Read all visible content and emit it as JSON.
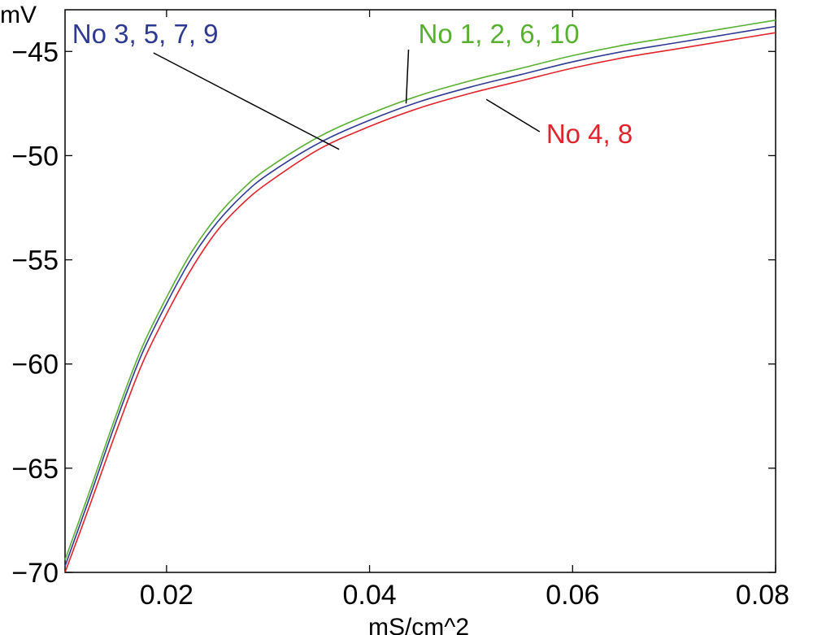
{
  "chart_data": {
    "type": "line",
    "title": "",
    "xlabel": "mS/cm^2",
    "ylabel": "mV",
    "xlim": [
      0.01,
      0.08
    ],
    "ylim": [
      -70,
      -43
    ],
    "x_ticks": [
      0.02,
      0.04,
      0.06,
      0.08
    ],
    "x_tick_labels": [
      "0.02",
      "0.04",
      "0.06",
      "0.08"
    ],
    "y_ticks": [
      -45,
      -50,
      -55,
      -60,
      -65,
      -70
    ],
    "y_tick_labels": [
      "−45",
      "−50",
      "−55",
      "−60",
      "−65",
      "−70"
    ],
    "grid": false,
    "x": [
      0.01,
      0.0125,
      0.015,
      0.0175,
      0.02,
      0.0225,
      0.025,
      0.0275,
      0.03,
      0.035,
      0.04,
      0.045,
      0.05,
      0.055,
      0.06,
      0.065,
      0.07,
      0.075,
      0.08
    ],
    "series": [
      {
        "color": "#58b030",
        "values": [
          -69.4,
          -66.0,
          -62.5,
          -59.3,
          -56.8,
          -54.6,
          -52.9,
          -51.6,
          -50.6,
          -49.1,
          -48.0,
          -47.1,
          -46.4,
          -45.8,
          -45.2,
          -44.7,
          -44.3,
          -43.9,
          -43.5
        ]
      },
      {
        "color": "#2e3a92",
        "values": [
          -69.7,
          -66.3,
          -62.8,
          -59.6,
          -57.1,
          -54.9,
          -53.2,
          -51.9,
          -50.9,
          -49.4,
          -48.3,
          -47.4,
          -46.7,
          -46.1,
          -45.5,
          -45.0,
          -44.6,
          -44.2,
          -43.8
        ]
      },
      {
        "color": "#e0242c",
        "values": [
          -70.0,
          -66.7,
          -63.3,
          -60.1,
          -57.6,
          -55.4,
          -53.6,
          -52.3,
          -51.3,
          -49.7,
          -48.6,
          -47.7,
          -47.0,
          -46.4,
          -45.8,
          -45.3,
          -44.9,
          -44.5,
          -44.1
        ]
      }
    ],
    "annotations": [
      {
        "text": "No 3, 5, 7, 9",
        "color": "#2e3a92",
        "point_x": 0.037,
        "point_y": -49.7,
        "label_x": 0.0107,
        "label_y": -44.6
      },
      {
        "text": "No 1, 2, 6, 10",
        "color": "#58b030",
        "point_x": 0.0436,
        "point_y": -47.5,
        "label_x": 0.0448,
        "label_y": -44.6
      },
      {
        "text": "No 4, 8",
        "color": "#e0242c",
        "point_x": 0.0515,
        "point_y": -47.3,
        "label_x": 0.0574,
        "label_y": -49.4
      }
    ]
  }
}
